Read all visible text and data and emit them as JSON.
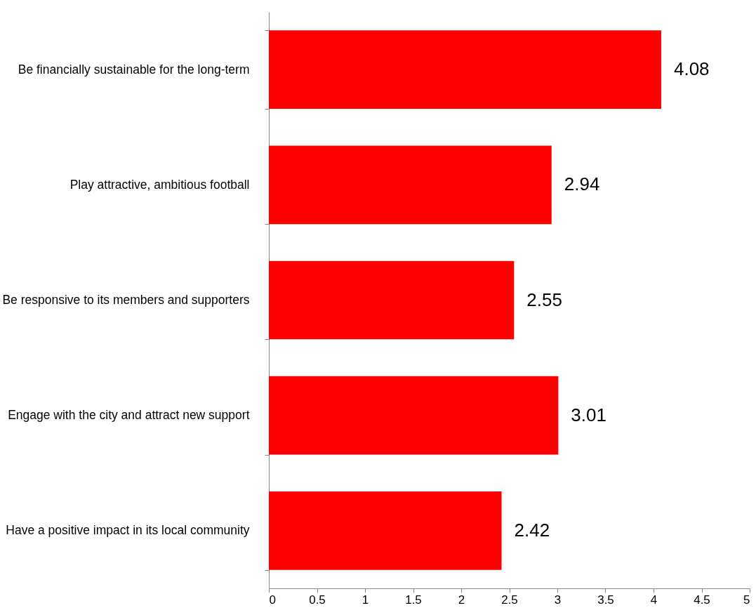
{
  "chart_data": {
    "type": "bar",
    "orientation": "horizontal",
    "categories": [
      "Be financially sustainable for the long-term",
      "Play attractive, ambitious football",
      "Be responsive to its members and supporters",
      "Engage with the city and attract new support",
      "Have a positive impact in its local community"
    ],
    "values": [
      4.08,
      2.94,
      2.55,
      3.01,
      2.42
    ],
    "color": "#ff0000",
    "xlim": [
      0,
      5
    ],
    "xticks": [
      0,
      0.5,
      1,
      1.5,
      2,
      2.5,
      3,
      3.5,
      4,
      4.5,
      5
    ],
    "data_labels": true,
    "grid": false
  }
}
